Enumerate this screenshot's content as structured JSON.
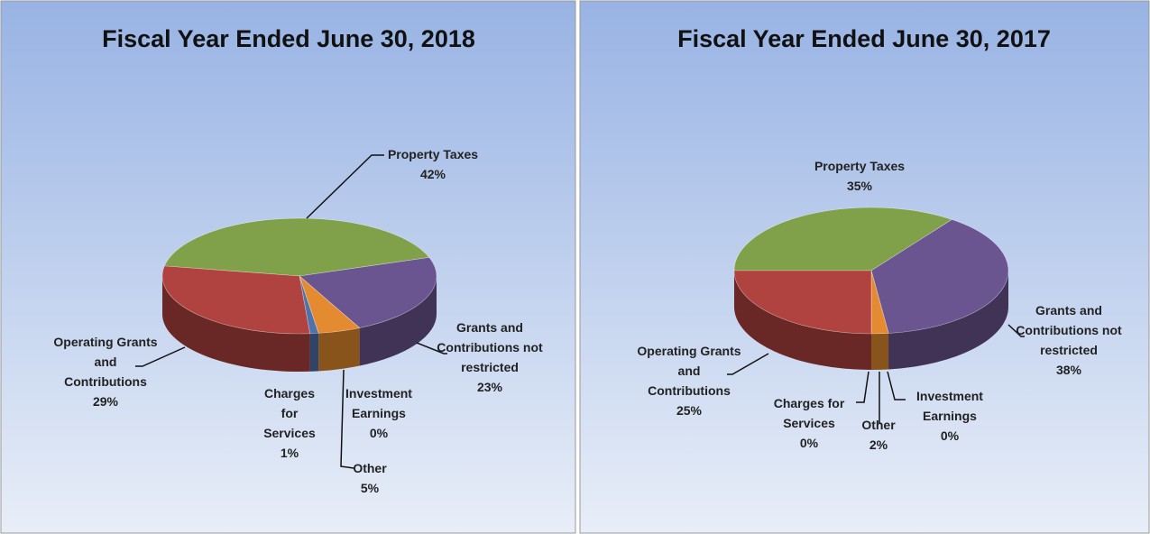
{
  "chart_data": [
    {
      "type": "pie",
      "title": "Fiscal Year Ended June 30, 2018",
      "categories": [
        "Property Taxes",
        "Grants and Contributions not restricted",
        "Investment Earnings",
        "Other",
        "Charges for Services",
        "Operating Grants and Contributions"
      ],
      "values": [
        42,
        23,
        0,
        5,
        1,
        29
      ],
      "value_labels": [
        "42%",
        "23%",
        "0%",
        "5%",
        "1%",
        "29%"
      ],
      "colors": [
        "#80a04a",
        "#6b5590",
        "#8fa8c8",
        "#e48a30",
        "#4f72aa",
        "#b0433f"
      ]
    },
    {
      "type": "pie",
      "title": "Fiscal Year Ended June 30, 2017",
      "categories": [
        "Property Taxes",
        "Grants and Contributions not restricted",
        "Investment Earnings",
        "Other",
        "Charges for Services",
        "Operating Grants and Contributions"
      ],
      "values": [
        35,
        38,
        0,
        2,
        0,
        25
      ],
      "value_labels": [
        "35%",
        "38%",
        "0%",
        "2%",
        "0%",
        "25%"
      ],
      "colors": [
        "#80a04a",
        "#6b5590",
        "#8fa8c8",
        "#e48a30",
        "#4f72aa",
        "#b0433f"
      ]
    }
  ]
}
